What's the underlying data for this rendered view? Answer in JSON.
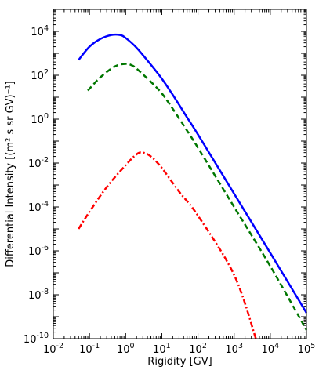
{
  "chart_data": {
    "type": "line",
    "title": "",
    "xlabel": "Rigidity [GV]",
    "ylabel": "Differential Intensity [(m² s sr GV)⁻¹]",
    "xscale": "log",
    "yscale": "log",
    "xlim": [
      0.01,
      100000
    ],
    "ylim": [
      1e-10,
      100000
    ],
    "grid": false,
    "legend": "none",
    "x_ticks": [
      {
        "value": 0.01,
        "base": "10",
        "exp": "-2"
      },
      {
        "value": 0.1,
        "base": "10",
        "exp": "-1"
      },
      {
        "value": 1,
        "base": "10",
        "exp": "0"
      },
      {
        "value": 10,
        "base": "10",
        "exp": "1"
      },
      {
        "value": 100,
        "base": "10",
        "exp": "2"
      },
      {
        "value": 1000,
        "base": "10",
        "exp": "3"
      },
      {
        "value": 10000,
        "base": "10",
        "exp": "4"
      },
      {
        "value": 100000,
        "base": "10",
        "exp": "5"
      }
    ],
    "y_ticks": [
      {
        "value": 1e-10,
        "base": "10",
        "exp": "-10"
      },
      {
        "value": 1e-08,
        "base": "10",
        "exp": "-8"
      },
      {
        "value": 1e-06,
        "base": "10",
        "exp": "-6"
      },
      {
        "value": 0.0001,
        "base": "10",
        "exp": "-4"
      },
      {
        "value": 0.01,
        "base": "10",
        "exp": "-2"
      },
      {
        "value": 1,
        "base": "10",
        "exp": "0"
      },
      {
        "value": 100,
        "base": "10",
        "exp": "2"
      },
      {
        "value": 10000,
        "base": "10",
        "exp": "4"
      }
    ],
    "series": [
      {
        "color": "#0000ff",
        "style": "solid",
        "points": [
          [
            0.05,
            500
          ],
          [
            0.1,
            2000
          ],
          [
            0.2,
            4500
          ],
          [
            0.4,
            6800
          ],
          [
            0.7,
            6800
          ],
          [
            1,
            5000
          ],
          [
            2,
            1800
          ],
          [
            5,
            300
          ],
          [
            10,
            70
          ],
          [
            20,
            13
          ],
          [
            50,
            1.2
          ],
          [
            100,
            0.2
          ],
          [
            1000,
            0.0004
          ],
          [
            10000,
            8e-07
          ],
          [
            100000,
            1.5e-09
          ]
        ]
      },
      {
        "color": "#007700",
        "style": "dashed",
        "points": [
          [
            0.09,
            20
          ],
          [
            0.2,
            80
          ],
          [
            0.5,
            250
          ],
          [
            1,
            330
          ],
          [
            1.5,
            280
          ],
          [
            2,
            200
          ],
          [
            5,
            50
          ],
          [
            10,
            15
          ],
          [
            20,
            3
          ],
          [
            50,
            0.3
          ],
          [
            100,
            0.05
          ],
          [
            1000,
            0.0001
          ],
          [
            10000,
            2e-07
          ],
          [
            100000,
            2.5e-10
          ]
        ]
      },
      {
        "color": "#ff0000",
        "style": "dashdot",
        "points": [
          [
            0.05,
            1e-05
          ],
          [
            0.1,
            6e-05
          ],
          [
            0.3,
            0.0008
          ],
          [
            1,
            0.008
          ],
          [
            2,
            0.025
          ],
          [
            3,
            0.03
          ],
          [
            5,
            0.02
          ],
          [
            10,
            0.006
          ],
          [
            30,
            0.0005
          ],
          [
            100,
            4e-05
          ],
          [
            1000,
            8e-08
          ],
          [
            4000,
            1e-10
          ]
        ]
      }
    ]
  }
}
